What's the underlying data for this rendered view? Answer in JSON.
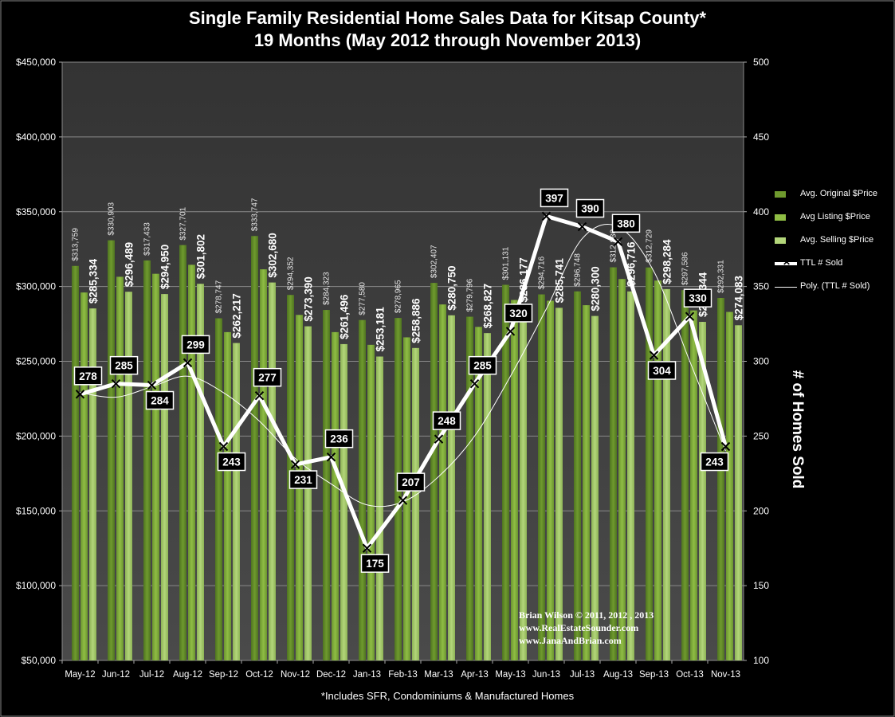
{
  "title_line1": "Single Family Residential Home Sales Data for Kitsap County*",
  "title_line2": "19 Months (May 2012 through November 2013)",
  "footnote": "*Includes SFR, Condominiums & Manufactured Homes",
  "y2_axis_title": "# of Homes Sold",
  "credits": {
    "line1": "Brian Wilson  © 2011, 2012 , 2013",
    "line2": "www.RealEstateSounder.com",
    "line3": "www.JanaAndBrian.com"
  },
  "colors": {
    "original": "#6f9a2e",
    "listing": "#8fbd44",
    "selling": "#b3d67a",
    "plot_bg": "#3c3c3c",
    "line": "#ffffff"
  },
  "chart_data": {
    "type": "bar",
    "categories": [
      "May-12",
      "Jun-12",
      "Jul-12",
      "Aug-12",
      "Sep-12",
      "Oct-12",
      "Nov-12",
      "Dec-12",
      "Jan-13",
      "Feb-13",
      "Mar-13",
      "Apr-13",
      "May-13",
      "Jun-13",
      "Jul-13",
      "Aug-13",
      "Sep-13",
      "Oct-13",
      "Nov-13"
    ],
    "y_ticks": [
      "$50,000",
      "$100,000",
      "$150,000",
      "$200,000",
      "$250,000",
      "$300,000",
      "$350,000",
      "$400,000",
      "$450,000"
    ],
    "ylim": [
      50000,
      450000
    ],
    "y2_ticks": [
      "100",
      "150",
      "200",
      "250",
      "300",
      "350",
      "400",
      "450",
      "500"
    ],
    "y2lim": [
      100,
      500
    ],
    "grid": true,
    "legend_position": "right",
    "series": [
      {
        "name": "Avg. Original $Price",
        "values": [
          313759,
          330903,
          317433,
          327701,
          278747,
          333747,
          294352,
          284323,
          277580,
          278965,
          302407,
          279796,
          301131,
          294716,
          296748,
          312830,
          312729,
          297586,
          292331
        ],
        "labels": [
          "$313,759",
          "$330,903",
          "$317,433",
          "$327,701",
          "$278,747",
          "$333,747",
          "$294,352",
          "$284,323",
          "$277,580",
          "$278,965",
          "$302,407",
          "$279,796",
          "$301,131",
          "$294,716",
          "$296,748",
          "$312,830",
          "$312,729",
          "$297,586",
          "$292,331"
        ]
      },
      {
        "name": "Avg Listing $Price",
        "values": [
          296000,
          306500,
          308500,
          314500,
          269500,
          311500,
          281000,
          269500,
          261000,
          266000,
          288000,
          273000,
          291000,
          290500,
          287500,
          305000,
          304000,
          284000,
          283000
        ]
      },
      {
        "name": "Avg. Selling $Price",
        "values": [
          285334,
          296489,
          294950,
          301802,
          262217,
          302680,
          273390,
          261496,
          253181,
          258886,
          280750,
          268827,
          286177,
          285741,
          280300,
          296716,
          298284,
          276344,
          274083
        ],
        "labels": [
          "$285,334",
          "$296,489",
          "$294,950",
          "$301,802",
          "$262,217",
          "$302,680",
          "$273,390",
          "$261,496",
          "$253,181",
          "$258,886",
          "$280,750",
          "$268,827",
          "$286,177",
          "$285,741",
          "$280,300",
          "$296,716",
          "$298,284",
          "$276,344",
          "$274,083"
        ]
      },
      {
        "name": "TTL # Sold",
        "axis": "secondary",
        "values": [
          278,
          285,
          284,
          299,
          243,
          277,
          231,
          236,
          175,
          207,
          248,
          285,
          320,
          397,
          390,
          380,
          304,
          330,
          243
        ],
        "labels": [
          "278",
          "285",
          "284",
          "299",
          "243",
          "277",
          "231",
          "236",
          "175",
          "207",
          "248",
          "285",
          "320",
          "397",
          "390",
          "380",
          "304",
          "330",
          "243"
        ]
      },
      {
        "name": "Poly. (TTL # Sold)",
        "axis": "secondary",
        "type": "trendline",
        "values": [
          279,
          276,
          283,
          290,
          279,
          260,
          235,
          218,
          204,
          206,
          223,
          250,
          290,
          335,
          382,
          390,
          360,
          300,
          240
        ]
      }
    ]
  }
}
